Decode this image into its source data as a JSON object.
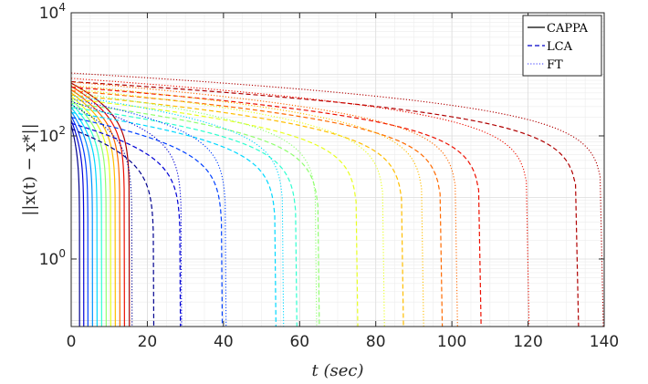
{
  "chart_data": {
    "type": "line",
    "title": "",
    "xlabel": "t (sec)",
    "ylabel": "||x(t) − x*||",
    "xlim": [
      0,
      140
    ],
    "ylim": [
      0.08,
      10000
    ],
    "yscale": "log",
    "grid": true,
    "minor_grid": true,
    "legend_position": "top-right",
    "x_ticks": [
      {
        "value": 0,
        "label": "0"
      },
      {
        "value": 20,
        "label": "20"
      },
      {
        "value": 40,
        "label": "40"
      },
      {
        "value": 60,
        "label": "60"
      },
      {
        "value": 80,
        "label": "80"
      },
      {
        "value": 100,
        "label": "100"
      },
      {
        "value": 120,
        "label": "120"
      },
      {
        "value": 140,
        "label": "140"
      }
    ],
    "y_ticks": [
      {
        "value": 1,
        "base": "10",
        "exp": "0"
      },
      {
        "value": 100,
        "base": "10",
        "exp": "2"
      },
      {
        "value": 10000,
        "base": "10",
        "exp": "4"
      }
    ],
    "legend": [
      {
        "name": "CAPPA",
        "style": "solid"
      },
      {
        "name": "LCA",
        "style": "dashed"
      },
      {
        "name": "FT",
        "style": "dotted"
      }
    ],
    "colors": [
      "#00008f",
      "#0000d6",
      "#0040ff",
      "#0090ff",
      "#00d8ff",
      "#30ffd0",
      "#90ff70",
      "#e8ff20",
      "#ffbe00",
      "#ff6a00",
      "#ee1000",
      "#b00000"
    ],
    "series": [
      {
        "method": "CAPPA",
        "style": "solid",
        "curves": [
          {
            "color_index": 0,
            "initial": 150,
            "end_time": 2.2
          },
          {
            "color_index": 1,
            "initial": 180,
            "end_time": 3.3
          },
          {
            "color_index": 2,
            "initial": 210,
            "end_time": 4.4
          },
          {
            "color_index": 3,
            "initial": 250,
            "end_time": 5.6
          },
          {
            "color_index": 4,
            "initial": 290,
            "end_time": 6.8
          },
          {
            "color_index": 5,
            "initial": 340,
            "end_time": 8.0
          },
          {
            "color_index": 6,
            "initial": 390,
            "end_time": 9.2
          },
          {
            "color_index": 7,
            "initial": 440,
            "end_time": 10.4
          },
          {
            "color_index": 8,
            "initial": 500,
            "end_time": 11.6
          },
          {
            "color_index": 9,
            "initial": 560,
            "end_time": 12.8
          },
          {
            "color_index": 10,
            "initial": 640,
            "end_time": 14.0
          },
          {
            "color_index": 11,
            "initial": 720,
            "end_time": 15.3
          }
        ]
      },
      {
        "method": "LCA",
        "style": "dashed",
        "curves": [
          {
            "color_index": 0,
            "initial": 130,
            "end_time": 21.7
          },
          {
            "color_index": 1,
            "initial": 160,
            "end_time": 28.7
          },
          {
            "color_index": 2,
            "initial": 200,
            "end_time": 39.7
          },
          {
            "color_index": 4,
            "initial": 240,
            "end_time": 53.8
          },
          {
            "color_index": 5,
            "initial": 290,
            "end_time": 59.3
          },
          {
            "color_index": 6,
            "initial": 340,
            "end_time": 65.2
          },
          {
            "color_index": 7,
            "initial": 400,
            "end_time": 75.3
          },
          {
            "color_index": 8,
            "initial": 460,
            "end_time": 87.3
          },
          {
            "color_index": 9,
            "initial": 540,
            "end_time": 97.5
          },
          {
            "color_index": 10,
            "initial": 620,
            "end_time": 107.7
          },
          {
            "color_index": 11,
            "initial": 760,
            "end_time": 133.3
          }
        ]
      },
      {
        "method": "FT",
        "style": "dotted",
        "curves": [
          {
            "color_index": 0,
            "initial": 320,
            "end_time": 16.0
          },
          {
            "color_index": 1,
            "initial": 360,
            "end_time": 29.0
          },
          {
            "color_index": 2,
            "initial": 400,
            "end_time": 40.7
          },
          {
            "color_index": 4,
            "initial": 450,
            "end_time": 55.8
          },
          {
            "color_index": 6,
            "initial": 510,
            "end_time": 64.5
          },
          {
            "color_index": 7,
            "initial": 580,
            "end_time": 82.3
          },
          {
            "color_index": 8,
            "initial": 660,
            "end_time": 92.6
          },
          {
            "color_index": 9,
            "initial": 750,
            "end_time": 101.5
          },
          {
            "color_index": 10,
            "initial": 860,
            "end_time": 120.3
          },
          {
            "color_index": 11,
            "initial": 1050,
            "end_time": 139.8
          }
        ]
      }
    ]
  }
}
